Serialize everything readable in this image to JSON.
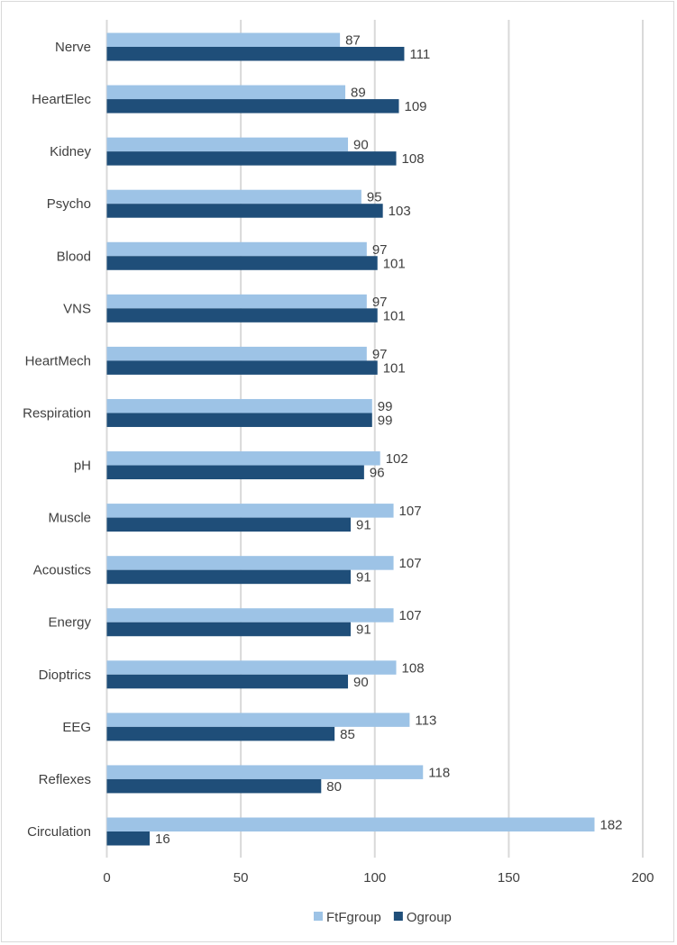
{
  "chart_data": {
    "type": "bar",
    "orientation": "horizontal",
    "title": "",
    "xlabel": "",
    "ylabel": "",
    "categories": [
      "Nerve",
      "HeartElec",
      "Kidney",
      "Psycho",
      "Blood",
      "VNS",
      "HeartMech",
      "Respiration",
      "pH",
      "Muscle",
      "Acoustics",
      "Energy",
      "Dioptrics",
      "EEG",
      "Reflexes",
      "Circulation"
    ],
    "series": [
      {
        "name": "FtFgroup",
        "color": "#9dc3e6",
        "values": [
          87,
          89,
          90,
          95,
          97,
          97,
          97,
          99,
          102,
          107,
          107,
          107,
          108,
          113,
          118,
          182
        ]
      },
      {
        "name": "Ogroup",
        "color": "#1f4e79",
        "values": [
          111,
          109,
          108,
          103,
          101,
          101,
          101,
          99,
          96,
          91,
          91,
          91,
          90,
          85,
          80,
          16
        ]
      }
    ],
    "xlim": [
      0,
      200
    ],
    "xticks": [
      0,
      50,
      100,
      150,
      200
    ],
    "grid": true,
    "legend_position": "bottom"
  }
}
